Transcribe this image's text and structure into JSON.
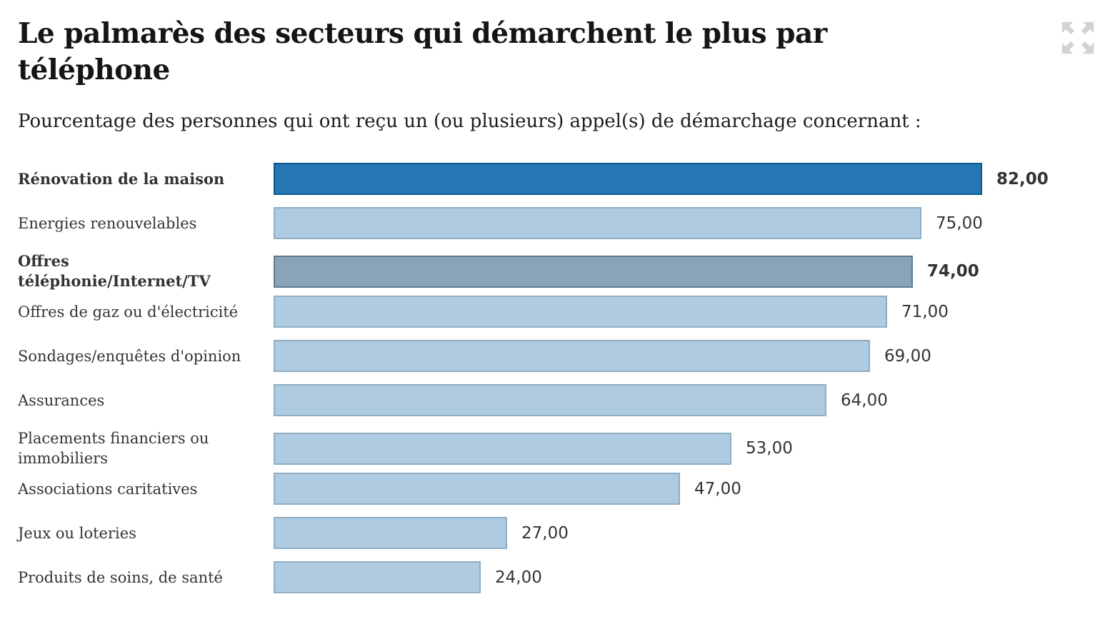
{
  "header": {
    "title": "Le palmarès des secteurs qui démarchent le plus par téléphone",
    "subtitle": "Pourcentage des personnes qui ont reçu un (ou plusieurs) appel(s) de démarchage concernant :"
  },
  "controls": {
    "expand_icon": "expand-arrows-icon"
  },
  "colors": {
    "bar_default_fill": "#aecbe1",
    "bar_default_border": "#8fadc3",
    "bar_highlight_fill": "#2776b4",
    "bar_highlight_border": "#0b5a8e",
    "bar_secondary_fill": "#8aa3b7",
    "bar_secondary_border": "#5d7a8f",
    "title_text": "#151515",
    "label_text": "#333333",
    "value_text": "#333333",
    "icon": "#d3d3d3",
    "background": "#ffffff"
  },
  "chart_data": {
    "type": "bar",
    "orientation": "horizontal",
    "title": "Le palmarès des secteurs qui démarchent le plus par téléphone",
    "subtitle": "Pourcentage des personnes qui ont reçu un (ou plusieurs) appel(s) de démarchage concernant :",
    "xlabel": "",
    "ylabel": "",
    "xlim": [
      0,
      82
    ],
    "grid": false,
    "legend": false,
    "value_format": "comma-decimal, 2 places",
    "categories": [
      "Rénovation de la maison",
      "Energies renouvelables",
      "Offres téléphonie/Internet/TV",
      "Offres de gaz ou d'électricité",
      "Sondages/enquêtes d'opinion",
      "Assurances",
      "Placements financiers ou immobiliers",
      "Associations caritatives",
      "Jeux ou loteries",
      "Produits de soins, de santé"
    ],
    "values": [
      82,
      75,
      74,
      71,
      69,
      64,
      53,
      47,
      27,
      24
    ],
    "rows": [
      {
        "label": "Rénovation de la maison",
        "value": 82,
        "display": "82,00",
        "bold": true,
        "color": "highlight"
      },
      {
        "label": "Energies renouvelables",
        "value": 75,
        "display": "75,00",
        "bold": false,
        "color": "default"
      },
      {
        "label": "Offres téléphonie/Internet/TV",
        "value": 74,
        "display": "74,00",
        "bold": true,
        "color": "secondary"
      },
      {
        "label": "Offres de gaz ou d'électricité",
        "value": 71,
        "display": "71,00",
        "bold": false,
        "color": "default"
      },
      {
        "label": "Sondages/enquêtes d'opinion",
        "value": 69,
        "display": "69,00",
        "bold": false,
        "color": "default"
      },
      {
        "label": "Assurances",
        "value": 64,
        "display": "64,00",
        "bold": false,
        "color": "default"
      },
      {
        "label": "Placements financiers ou immobiliers",
        "value": 53,
        "display": "53,00",
        "bold": false,
        "color": "default"
      },
      {
        "label": "Associations caritatives",
        "value": 47,
        "display": "47,00",
        "bold": false,
        "color": "default"
      },
      {
        "label": "Jeux ou loteries",
        "value": 27,
        "display": "27,00",
        "bold": false,
        "color": "default"
      },
      {
        "label": "Produits de soins, de santé",
        "value": 24,
        "display": "24,00",
        "bold": false,
        "color": "default"
      }
    ]
  }
}
